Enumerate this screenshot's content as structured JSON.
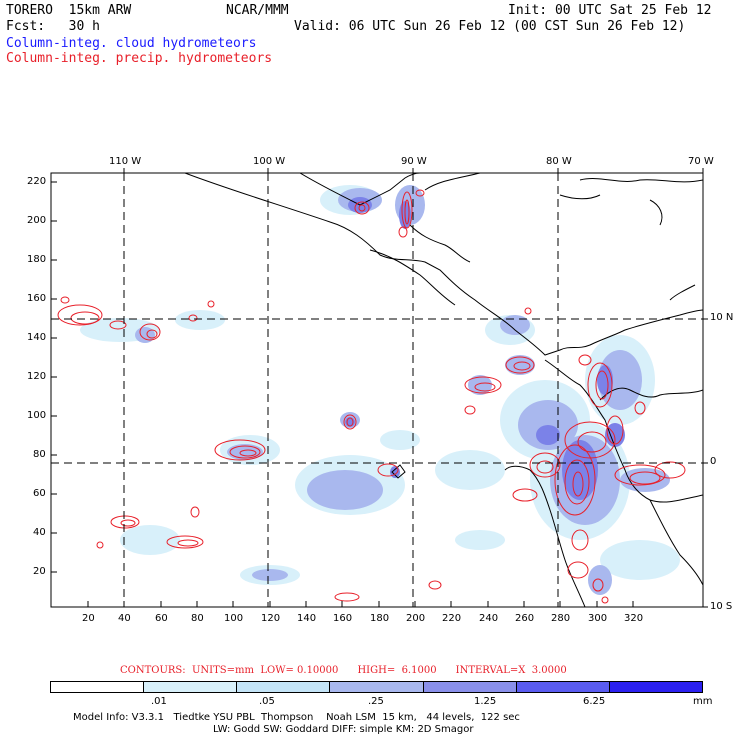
{
  "header": {
    "model": "TORERO  15km ARW",
    "org": "NCAR/MMM",
    "init": "Init: 00 UTC Sat 25 Feb 12",
    "fcst": "Fcst:   30 h",
    "valid": "Valid: 06 UTC Sun 26 Feb 12 (00 CST Sun 26 Feb 12)",
    "field1": "Column-integ. cloud hydrometeors",
    "field2": "Column-integ. precip. hydrometeors"
  },
  "map": {
    "lon_labels": [
      "110 W",
      "100 W",
      "90 W",
      "80 W",
      "70 W"
    ],
    "lat_labels": [
      "10 N",
      "0",
      "10 S"
    ],
    "y_ticks": [
      "220",
      "200",
      "180",
      "160",
      "140",
      "120",
      "100",
      "80",
      "60",
      "40",
      "20"
    ],
    "x_ticks": [
      "20",
      "40",
      "60",
      "80",
      "100",
      "120",
      "140",
      "160",
      "180",
      "200",
      "220",
      "240",
      "260",
      "280",
      "300",
      "320"
    ],
    "colors": {
      "land_line": "#000000",
      "cloud_light": "#d8f0fa",
      "cloud_mid": "#a9b8ee",
      "cloud_strong": "#7b82e8",
      "precip_contour": "#e8202a",
      "grid": "#000000"
    }
  },
  "contours": {
    "text": "CONTOURS:  UNITS=mm  LOW= 0.10000      HIGH=  6.1000      INTERVAL=X  3.0000"
  },
  "legend": {
    "labels": [
      ".01",
      ".05",
      ".25",
      "1.25",
      "6.25",
      "mm"
    ],
    "colors": [
      "#ffffff",
      "#d8f0fa",
      "#c4e4f7",
      "#a9b8ee",
      "#8a90ea",
      "#5a5cf0",
      "#2b20f0"
    ]
  },
  "model_info": {
    "line1": "Model Info: V3.3.1   Tiedtke YSU PBL  Thompson    Noah LSM  15 km,   44 levels,  122 sec",
    "line2": "LW: Godd SW: Goddard DIFF: simple KM: 2D Smagor"
  }
}
